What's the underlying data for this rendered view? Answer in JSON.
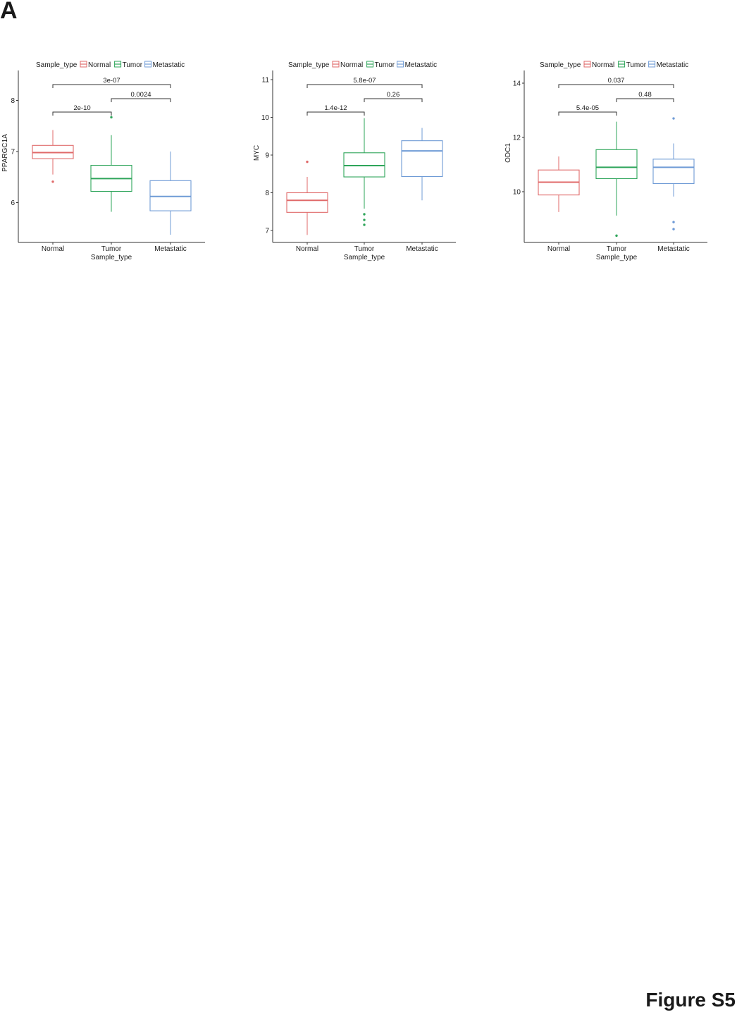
{
  "figure": {
    "panel_label": "A",
    "figure_label": "Figure S5"
  },
  "colors": {
    "Normal": "#e06a6a",
    "Tumor": "#2ea55a",
    "Metastatic": "#6f9bd6",
    "axis": "#333333"
  },
  "chart_data": [
    {
      "type": "boxplot",
      "title": "",
      "xlabel": "Sample_type",
      "ylabel": "PPARGC1A",
      "categories": [
        "Normal",
        "Tumor",
        "Metastatic"
      ],
      "legend": {
        "title": "Sample_type",
        "entries": [
          "Normal",
          "Tumor",
          "Metastatic"
        ],
        "position": "top"
      },
      "yticks": [
        6,
        7,
        8
      ],
      "ylim": [
        5.25,
        8.6
      ],
      "grid": false,
      "boxes": [
        {
          "name": "Normal",
          "whisker_low": 6.55,
          "q1": 6.86,
          "median": 6.98,
          "q3": 7.12,
          "whisker_high": 7.42,
          "outliers": [
            6.41
          ]
        },
        {
          "name": "Tumor",
          "whisker_low": 5.82,
          "q1": 6.22,
          "median": 6.47,
          "q3": 6.73,
          "whisker_high": 7.32,
          "outliers": [
            7.67
          ]
        },
        {
          "name": "Metastatic",
          "whisker_low": 5.37,
          "q1": 5.84,
          "median": 6.12,
          "q3": 6.43,
          "whisker_high": 7.0,
          "outliers": []
        }
      ],
      "comparisons": [
        {
          "groups": [
            "Normal",
            "Tumor"
          ],
          "p": "2e-10"
        },
        {
          "groups": [
            "Tumor",
            "Metastatic"
          ],
          "p": "0.0024"
        },
        {
          "groups": [
            "Normal",
            "Metastatic"
          ],
          "p": "3e-07"
        }
      ]
    },
    {
      "type": "boxplot",
      "title": "",
      "xlabel": "Sample_type",
      "ylabel": "MYC",
      "categories": [
        "Normal",
        "Tumor",
        "Metastatic"
      ],
      "legend": {
        "title": "Sample_type",
        "entries": [
          "Normal",
          "Tumor",
          "Metastatic"
        ],
        "position": "top"
      },
      "yticks": [
        7,
        8,
        9,
        10,
        11
      ],
      "ylim": [
        6.7,
        11.1
      ],
      "grid": false,
      "boxes": [
        {
          "name": "Normal",
          "whisker_low": 6.88,
          "q1": 7.48,
          "median": 7.8,
          "q3": 8.0,
          "whisker_high": 8.42,
          "outliers": [
            8.82
          ]
        },
        {
          "name": "Tumor",
          "whisker_low": 7.58,
          "q1": 8.42,
          "median": 8.72,
          "q3": 9.06,
          "whisker_high": 9.98,
          "outliers": [
            7.43,
            7.28,
            7.15
          ]
        },
        {
          "name": "Metastatic",
          "whisker_low": 7.8,
          "q1": 8.43,
          "median": 9.11,
          "q3": 9.38,
          "whisker_high": 9.72,
          "outliers": []
        }
      ],
      "comparisons": [
        {
          "groups": [
            "Normal",
            "Tumor"
          ],
          "p": "1.4e-12"
        },
        {
          "groups": [
            "Tumor",
            "Metastatic"
          ],
          "p": "0.26"
        },
        {
          "groups": [
            "Normal",
            "Metastatic"
          ],
          "p": "5.8e-07"
        }
      ]
    },
    {
      "type": "boxplot",
      "title": "",
      "xlabel": "Sample_type",
      "ylabel": "ODC1",
      "categories": [
        "Normal",
        "Tumor",
        "Metastatic"
      ],
      "legend": {
        "title": "Sample_type",
        "entries": [
          "Normal",
          "Tumor",
          "Metastatic"
        ],
        "position": "top"
      },
      "yticks": [
        10,
        12,
        14
      ],
      "ylim": [
        8.1,
        14.3
      ],
      "grid": false,
      "boxes": [
        {
          "name": "Normal",
          "whisker_low": 9.25,
          "q1": 9.88,
          "median": 10.35,
          "q3": 10.8,
          "whisker_high": 11.3,
          "outliers": []
        },
        {
          "name": "Tumor",
          "whisker_low": 9.12,
          "q1": 10.48,
          "median": 10.9,
          "q3": 11.55,
          "whisker_high": 12.58,
          "outliers": [
            8.38
          ]
        },
        {
          "name": "Metastatic",
          "whisker_low": 9.82,
          "q1": 10.3,
          "median": 10.9,
          "q3": 11.2,
          "whisker_high": 11.78,
          "outliers": [
            12.7,
            8.88,
            8.62
          ]
        }
      ],
      "comparisons": [
        {
          "groups": [
            "Normal",
            "Tumor"
          ],
          "p": "5.4e-05"
        },
        {
          "groups": [
            "Tumor",
            "Metastatic"
          ],
          "p": "0.48"
        },
        {
          "groups": [
            "Normal",
            "Metastatic"
          ],
          "p": "0.037"
        }
      ]
    }
  ]
}
